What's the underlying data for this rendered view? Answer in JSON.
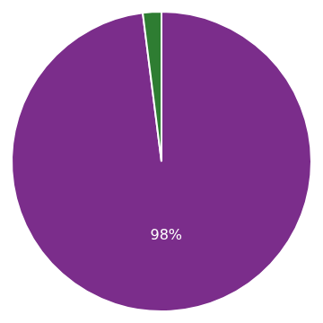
{
  "chart_data": {
    "type": "pie",
    "values": [
      98,
      2
    ],
    "value_labels": [
      "98%",
      null
    ],
    "data_labels": true,
    "colors": [
      "#7b2d8b",
      "#2e7d32"
    ],
    "legend": false
  }
}
